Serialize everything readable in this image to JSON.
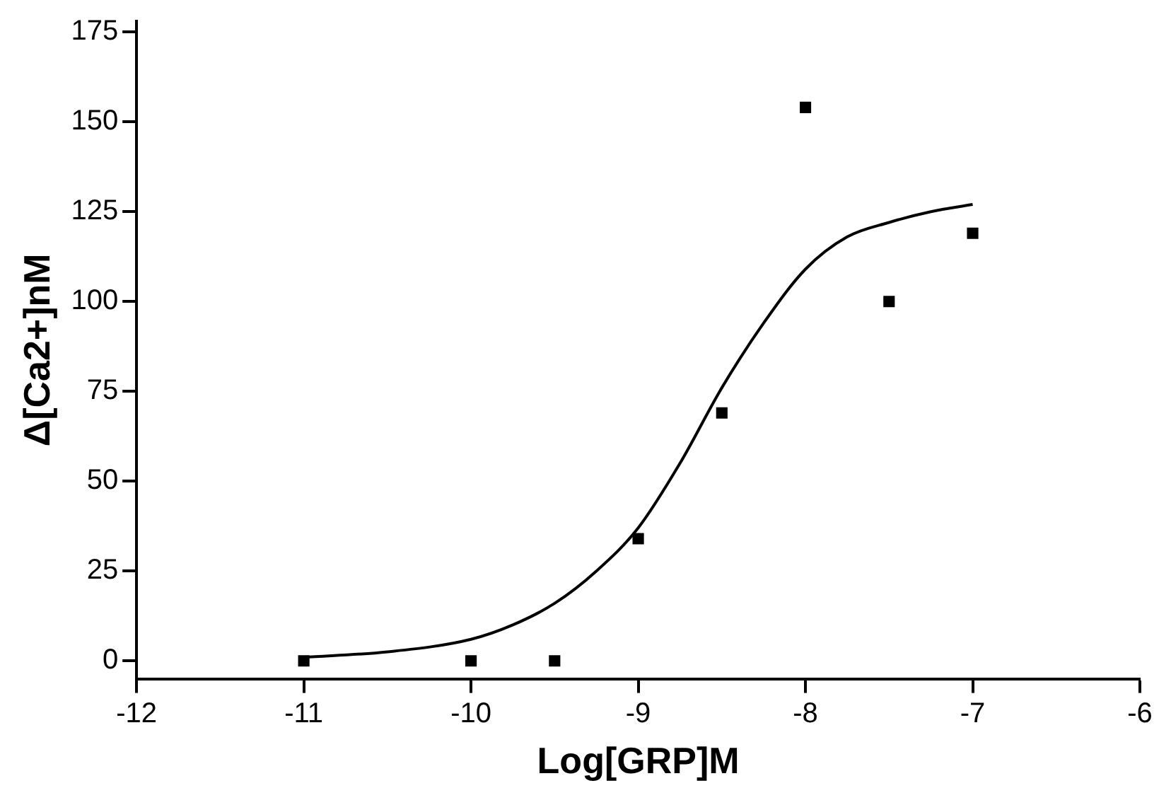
{
  "chart_data": {
    "type": "scatter",
    "xlabel": "Log[GRP]M",
    "ylabel": "Δ[Ca2+]nM",
    "xlim": [
      -12,
      -6
    ],
    "xticks": [
      -12,
      -11,
      -10,
      -9,
      -8,
      -7,
      -6
    ],
    "ylim": [
      -5,
      178
    ],
    "yticks": [
      0,
      25,
      50,
      75,
      100,
      125,
      150,
      175
    ],
    "grid": false,
    "legend": false,
    "series": [
      {
        "color": "#000000",
        "marker": "square",
        "x": [
          -11,
          -10,
          -9.5,
          -9,
          -8.5,
          -8,
          -7.5,
          -7
        ],
        "values": [
          0,
          0,
          0,
          34,
          69,
          154,
          100,
          119
        ]
      },
      {
        "type": "line",
        "color": "#000000",
        "marker": "none",
        "line_style": "solid",
        "x": [
          -11,
          -10.5,
          -10,
          -9.75,
          -9.5,
          -9.25,
          -9,
          -8.75,
          -8.5,
          -8.25,
          -8,
          -7.75,
          -7.5,
          -7.25,
          -7
        ],
        "values": [
          1,
          2.5,
          6,
          10,
          16,
          25,
          37,
          55,
          76,
          94,
          109,
          118,
          122,
          125,
          127
        ]
      }
    ]
  }
}
